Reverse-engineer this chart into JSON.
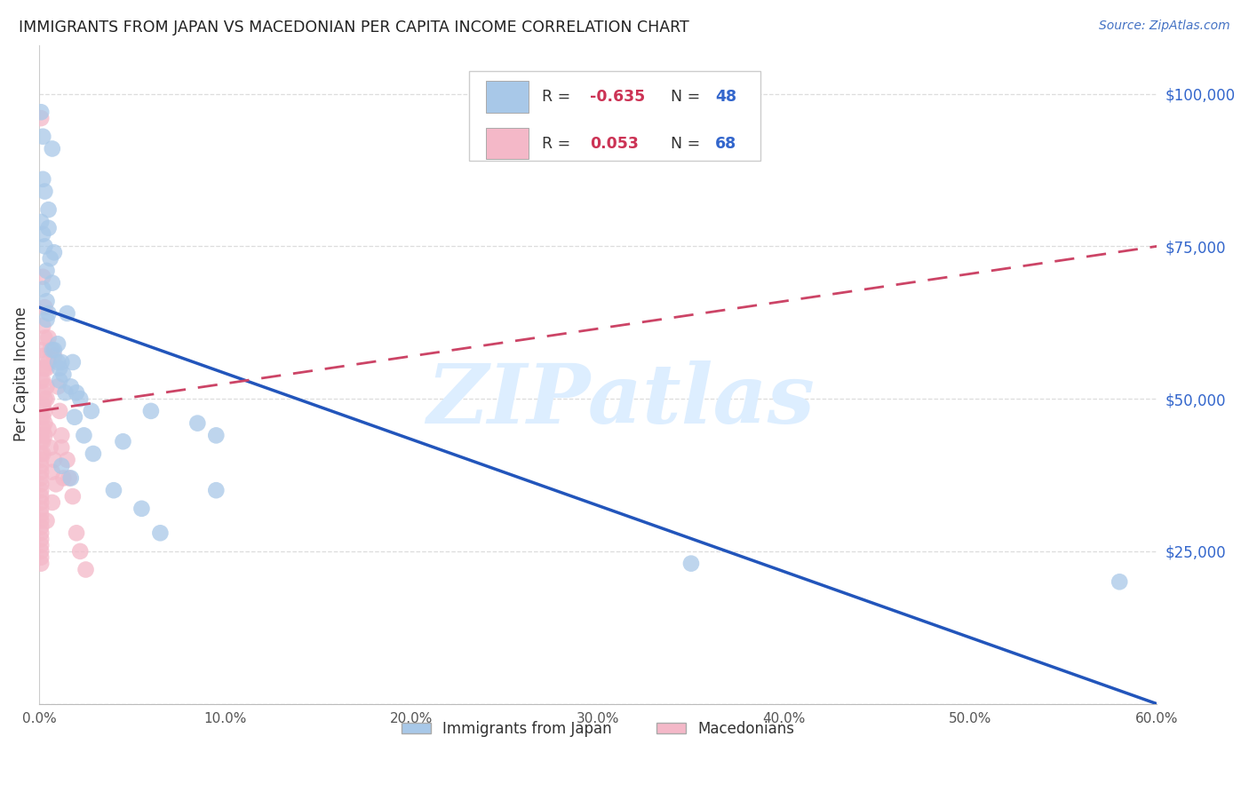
{
  "title": "IMMIGRANTS FROM JAPAN VS MACEDONIAN PER CAPITA INCOME CORRELATION CHART",
  "source": "Source: ZipAtlas.com",
  "ylabel": "Per Capita Income",
  "legend_label1": "Immigrants from Japan",
  "legend_label2": "Macedonians",
  "blue_color": "#a8c8e8",
  "pink_color": "#f4b8c8",
  "blue_line_color": "#2255bb",
  "pink_line_color": "#cc4466",
  "pink_line_dash": true,
  "watermark_text": "ZIPatlas",
  "watermark_color": "#ddeeff",
  "blue_R": -0.635,
  "blue_N": 48,
  "pink_R": 0.053,
  "pink_N": 68,
  "legend_R_color": "#cc3355",
  "legend_N_color": "#3366cc",
  "legend_text_color": "#333333",
  "title_color": "#222222",
  "source_color": "#4472c4",
  "ylabel_color": "#333333",
  "tick_color": "#555555",
  "ytick_color": "#3366cc",
  "grid_color": "#dddddd",
  "xlim": [
    0,
    0.6
  ],
  "ylim": [
    0,
    108000
  ],
  "xticks": [
    0.0,
    0.1,
    0.2,
    0.3,
    0.4,
    0.5,
    0.6
  ],
  "yticks": [
    0,
    25000,
    50000,
    75000,
    100000
  ],
  "blue_line_x": [
    0.0,
    0.6
  ],
  "blue_line_y": [
    65000,
    0
  ],
  "pink_line_x": [
    0.0,
    0.6
  ],
  "pink_line_y": [
    48000,
    75000
  ],
  "blue_points_x": [
    0.001,
    0.002,
    0.007,
    0.002,
    0.003,
    0.005,
    0.001,
    0.002,
    0.003,
    0.006,
    0.004,
    0.007,
    0.004,
    0.005,
    0.005,
    0.01,
    0.012,
    0.008,
    0.02,
    0.015,
    0.06,
    0.085,
    0.095,
    0.045,
    0.01,
    0.013,
    0.017,
    0.022,
    0.028,
    0.018,
    0.012,
    0.017,
    0.095,
    0.35,
    0.58,
    0.008,
    0.011,
    0.014,
    0.019,
    0.024,
    0.029,
    0.04,
    0.055,
    0.065,
    0.002,
    0.004,
    0.007,
    0.011
  ],
  "blue_points_y": [
    97000,
    93000,
    91000,
    86000,
    84000,
    81000,
    79000,
    77000,
    75000,
    73000,
    71000,
    69000,
    66000,
    64000,
    78000,
    59000,
    56000,
    74000,
    51000,
    64000,
    48000,
    46000,
    44000,
    43000,
    56000,
    54000,
    52000,
    50000,
    48000,
    56000,
    39000,
    37000,
    35000,
    23000,
    20000,
    58000,
    55000,
    51000,
    47000,
    44000,
    41000,
    35000,
    32000,
    28000,
    68000,
    63000,
    58000,
    53000
  ],
  "pink_points_x": [
    0.001,
    0.001,
    0.001,
    0.001,
    0.001,
    0.001,
    0.001,
    0.001,
    0.001,
    0.001,
    0.001,
    0.001,
    0.001,
    0.001,
    0.001,
    0.001,
    0.001,
    0.001,
    0.001,
    0.001,
    0.001,
    0.001,
    0.001,
    0.001,
    0.001,
    0.002,
    0.002,
    0.002,
    0.002,
    0.002,
    0.002,
    0.002,
    0.002,
    0.002,
    0.002,
    0.003,
    0.003,
    0.003,
    0.003,
    0.003,
    0.003,
    0.004,
    0.004,
    0.004,
    0.004,
    0.005,
    0.005,
    0.006,
    0.006,
    0.007,
    0.007,
    0.008,
    0.009,
    0.01,
    0.011,
    0.012,
    0.013,
    0.015,
    0.016,
    0.018,
    0.02,
    0.022,
    0.025,
    0.008,
    0.012,
    0.005,
    0.003,
    0.002
  ],
  "pink_points_y": [
    96000,
    58000,
    53000,
    47000,
    44000,
    43000,
    41000,
    40000,
    39000,
    38000,
    37000,
    36000,
    35000,
    34000,
    33000,
    32000,
    31000,
    30000,
    29000,
    28000,
    27000,
    26000,
    25000,
    24000,
    23000,
    62000,
    57000,
    55000,
    53000,
    51000,
    49000,
    47000,
    45000,
    43000,
    41000,
    60000,
    55000,
    50000,
    48000,
    46000,
    44000,
    55000,
    52000,
    50000,
    30000,
    56000,
    45000,
    58000,
    42000,
    38000,
    33000,
    40000,
    36000,
    52000,
    48000,
    44000,
    37000,
    40000,
    37000,
    34000,
    28000,
    25000,
    22000,
    57000,
    42000,
    60000,
    65000,
    70000
  ]
}
